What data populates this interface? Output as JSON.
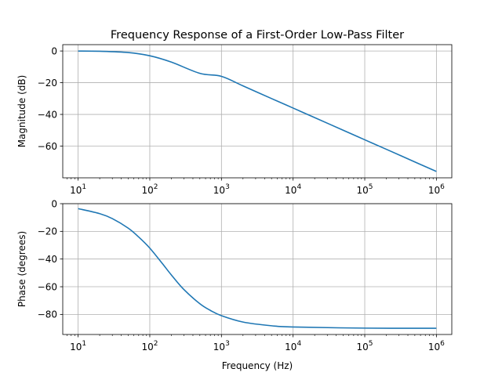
{
  "chart_data": {
    "type": "line",
    "title": "Frequency Response of a First-Order Low-Pass Filter",
    "grid": true,
    "subplots": [
      {
        "name": "magnitude",
        "ylabel": "Magnitude (dB)",
        "xlabel": "",
        "xscale": "log",
        "xlim": [
          6.1,
          1640000
        ],
        "ylim": [
          -80,
          4
        ],
        "x_ticks": [
          10,
          100,
          1000,
          10000,
          100000,
          1000000
        ],
        "x_tick_labels": [
          {
            "base": "10",
            "exp": "1"
          },
          {
            "base": "10",
            "exp": "2"
          },
          {
            "base": "10",
            "exp": "3"
          },
          {
            "base": "10",
            "exp": "4"
          },
          {
            "base": "10",
            "exp": "5"
          },
          {
            "base": "10",
            "exp": "6"
          }
        ],
        "y_ticks": [
          0,
          -20,
          -40,
          -60
        ],
        "y_tick_labels": [
          "0",
          "−20",
          "−40",
          "−60"
        ],
        "series": [
          {
            "color": "#1f77b4",
            "x": [
              10,
              20,
              50,
              100,
              200,
              500,
              1000,
              2000,
              5000,
              10000,
              20000,
              50000,
              100000,
              200000,
              500000,
              1000000
            ],
            "y": [
              -0.04,
              -0.17,
              -0.97,
              -3.0,
              -7.0,
              -14.1,
              -16.0,
              -22.0,
              -30.0,
              -36.0,
              -42.0,
              -50.0,
              -56.0,
              -62.0,
              -70.0,
              -76.0
            ]
          }
        ]
      },
      {
        "name": "phase",
        "ylabel": "Phase (degrees)",
        "xlabel": "Frequency (Hz)",
        "xscale": "log",
        "xlim": [
          6.1,
          1640000
        ],
        "ylim": [
          -94.5,
          0
        ],
        "x_ticks": [
          10,
          100,
          1000,
          10000,
          100000,
          1000000
        ],
        "x_tick_labels": [
          {
            "base": "10",
            "exp": "1"
          },
          {
            "base": "10",
            "exp": "2"
          },
          {
            "base": "10",
            "exp": "3"
          },
          {
            "base": "10",
            "exp": "4"
          },
          {
            "base": "10",
            "exp": "5"
          },
          {
            "base": "10",
            "exp": "6"
          }
        ],
        "y_ticks": [
          0,
          -20,
          -40,
          -60,
          -80
        ],
        "y_tick_labels": [
          "0",
          "−20",
          "−40",
          "−60",
          "−80"
        ],
        "series": [
          {
            "color": "#1f77b4",
            "x": [
              10,
              20,
              30,
              50,
              70,
              100,
              150,
              200,
              300,
              500,
              700,
              1000,
              2000,
              5000,
              10000,
              100000,
              1000000
            ],
            "y": [
              -3.6,
              -7.2,
              -10.8,
              -17.7,
              -24.1,
              -32.1,
              -43.3,
              -51.5,
              -62.1,
              -72.3,
              -77.1,
              -80.9,
              -85.5,
              -88.2,
              -89.1,
              -89.9,
              -89.99
            ]
          }
        ]
      }
    ]
  }
}
